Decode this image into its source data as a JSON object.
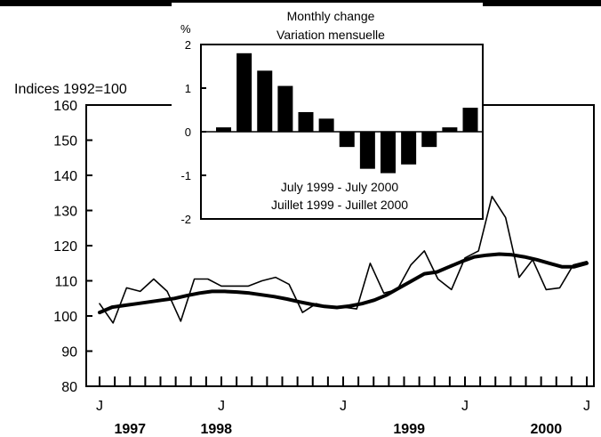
{
  "chart_data": [
    {
      "type": "line",
      "ylabel": "Indices 1992=100",
      "ylim": [
        80,
        160
      ],
      "yticks": [
        80,
        90,
        100,
        110,
        120,
        130,
        140,
        150,
        160
      ],
      "x_month_labels": [
        {
          "label": "J",
          "month_index": 0
        },
        {
          "label": "J",
          "month_index": 12
        },
        {
          "label": "J",
          "month_index": 24
        },
        {
          "label": "J",
          "month_index": 36
        },
        {
          "label": "J",
          "month_index": 48
        }
      ],
      "x_year_labels": [
        {
          "label": "1997",
          "month_index": 3
        },
        {
          "label": "1998",
          "month_index": 11.5
        },
        {
          "label": "1999",
          "month_index": 30.5
        },
        {
          "label": "2000",
          "month_index": 44
        }
      ],
      "x_range_months": [
        0,
        48
      ],
      "series": [
        {
          "style": "thin",
          "values": [
            103.5,
            98,
            108,
            107,
            110.5,
            107,
            98.5,
            110.5,
            110.5,
            108.5,
            108.5,
            108.5,
            110,
            111,
            109,
            101,
            103.5,
            102.5,
            102.5,
            102,
            115,
            106.5,
            107.5,
            114.5,
            118.5,
            110.5,
            107.5,
            116.5,
            118.5,
            134,
            128,
            111,
            116,
            107.5,
            108,
            114.5,
            115.5
          ]
        },
        {
          "style": "thick",
          "values": [
            101,
            102.5,
            103,
            103.5,
            104,
            104.5,
            105,
            105.8,
            106.5,
            107,
            107,
            106.8,
            106.5,
            106,
            105.5,
            104.8,
            104,
            103.3,
            102.7,
            102.4,
            102.8,
            103.5,
            104.5,
            106,
            108,
            110,
            112,
            112.5,
            114,
            115.5,
            116.8,
            117.3,
            117.6,
            117.4,
            116.8,
            116,
            115,
            114,
            114,
            115
          ]
        }
      ]
    },
    {
      "type": "bar",
      "title": "Monthly change",
      "subtitle": "Variation mensuelle",
      "ylabel": "%",
      "ylim": [
        -2,
        2
      ],
      "yticks": [
        -2,
        -1,
        0,
        1,
        2
      ],
      "caption_line1": "July 1999 - July  2000",
      "caption_line2": "Juillet 1999 - Juillet  2000",
      "values": [
        0.1,
        1.8,
        1.4,
        1.05,
        0.45,
        0.3,
        -0.35,
        -0.85,
        -0.95,
        -0.75,
        -0.35,
        0.1,
        0.55
      ]
    }
  ]
}
